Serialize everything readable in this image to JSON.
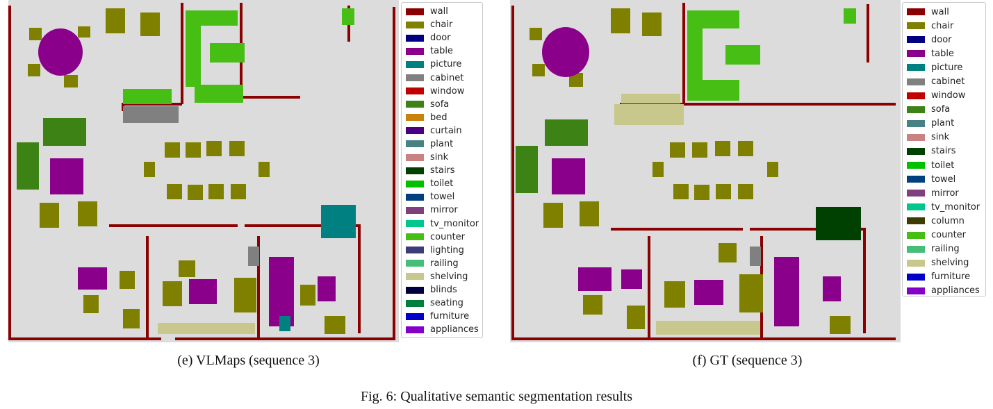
{
  "panels": [
    {
      "caption": "(e) VLMaps (sequence 3)",
      "legend": [
        {
          "label": "wall",
          "color": "#8b0000"
        },
        {
          "label": "chair",
          "color": "#808000"
        },
        {
          "label": "door",
          "color": "#000080"
        },
        {
          "label": "table",
          "color": "#8b008b"
        },
        {
          "label": "picture",
          "color": "#008080"
        },
        {
          "label": "cabinet",
          "color": "#808080"
        },
        {
          "label": "window",
          "color": "#c00000"
        },
        {
          "label": "sofa",
          "color": "#3c8214"
        },
        {
          "label": "bed",
          "color": "#c8820a"
        },
        {
          "label": "curtain",
          "color": "#4b0082"
        },
        {
          "label": "plant",
          "color": "#468282"
        },
        {
          "label": "sink",
          "color": "#c88282"
        },
        {
          "label": "stairs",
          "color": "#004000"
        },
        {
          "label": "toilet",
          "color": "#00c000"
        },
        {
          "label": "towel",
          "color": "#004080"
        },
        {
          "label": "mirror",
          "color": "#804080"
        },
        {
          "label": "tv_monitor",
          "color": "#00c88c"
        },
        {
          "label": "counter",
          "color": "#46be14"
        },
        {
          "label": "lighting",
          "color": "#3c3c78"
        },
        {
          "label": "railing",
          "color": "#46be78"
        },
        {
          "label": "shelving",
          "color": "#c8c88c"
        },
        {
          "label": "blinds",
          "color": "#000040"
        },
        {
          "label": "seating",
          "color": "#00803c"
        },
        {
          "label": "furniture",
          "color": "#0000c8"
        },
        {
          "label": "appliances",
          "color": "#8200c8"
        }
      ]
    },
    {
      "caption": "(f) GT (sequence 3)",
      "legend": [
        {
          "label": "wall",
          "color": "#8b0000"
        },
        {
          "label": "chair",
          "color": "#808000"
        },
        {
          "label": "door",
          "color": "#000080"
        },
        {
          "label": "table",
          "color": "#8b008b"
        },
        {
          "label": "picture",
          "color": "#008080"
        },
        {
          "label": "cabinet",
          "color": "#808080"
        },
        {
          "label": "window",
          "color": "#c00000"
        },
        {
          "label": "sofa",
          "color": "#3c8214"
        },
        {
          "label": "plant",
          "color": "#468282"
        },
        {
          "label": "sink",
          "color": "#c88282"
        },
        {
          "label": "stairs",
          "color": "#004000"
        },
        {
          "label": "toilet",
          "color": "#00c000"
        },
        {
          "label": "towel",
          "color": "#004080"
        },
        {
          "label": "mirror",
          "color": "#804080"
        },
        {
          "label": "tv_monitor",
          "color": "#00c88c"
        },
        {
          "label": "column",
          "color": "#3c3c00"
        },
        {
          "label": "counter",
          "color": "#46be14"
        },
        {
          "label": "railing",
          "color": "#46be78"
        },
        {
          "label": "shelving",
          "color": "#c8c88c"
        },
        {
          "label": "furniture",
          "color": "#0000c8"
        },
        {
          "label": "appliances",
          "color": "#8200c8"
        }
      ]
    }
  ],
  "figure_caption": "Fig. 6: Qualitative semantic segmentation results"
}
